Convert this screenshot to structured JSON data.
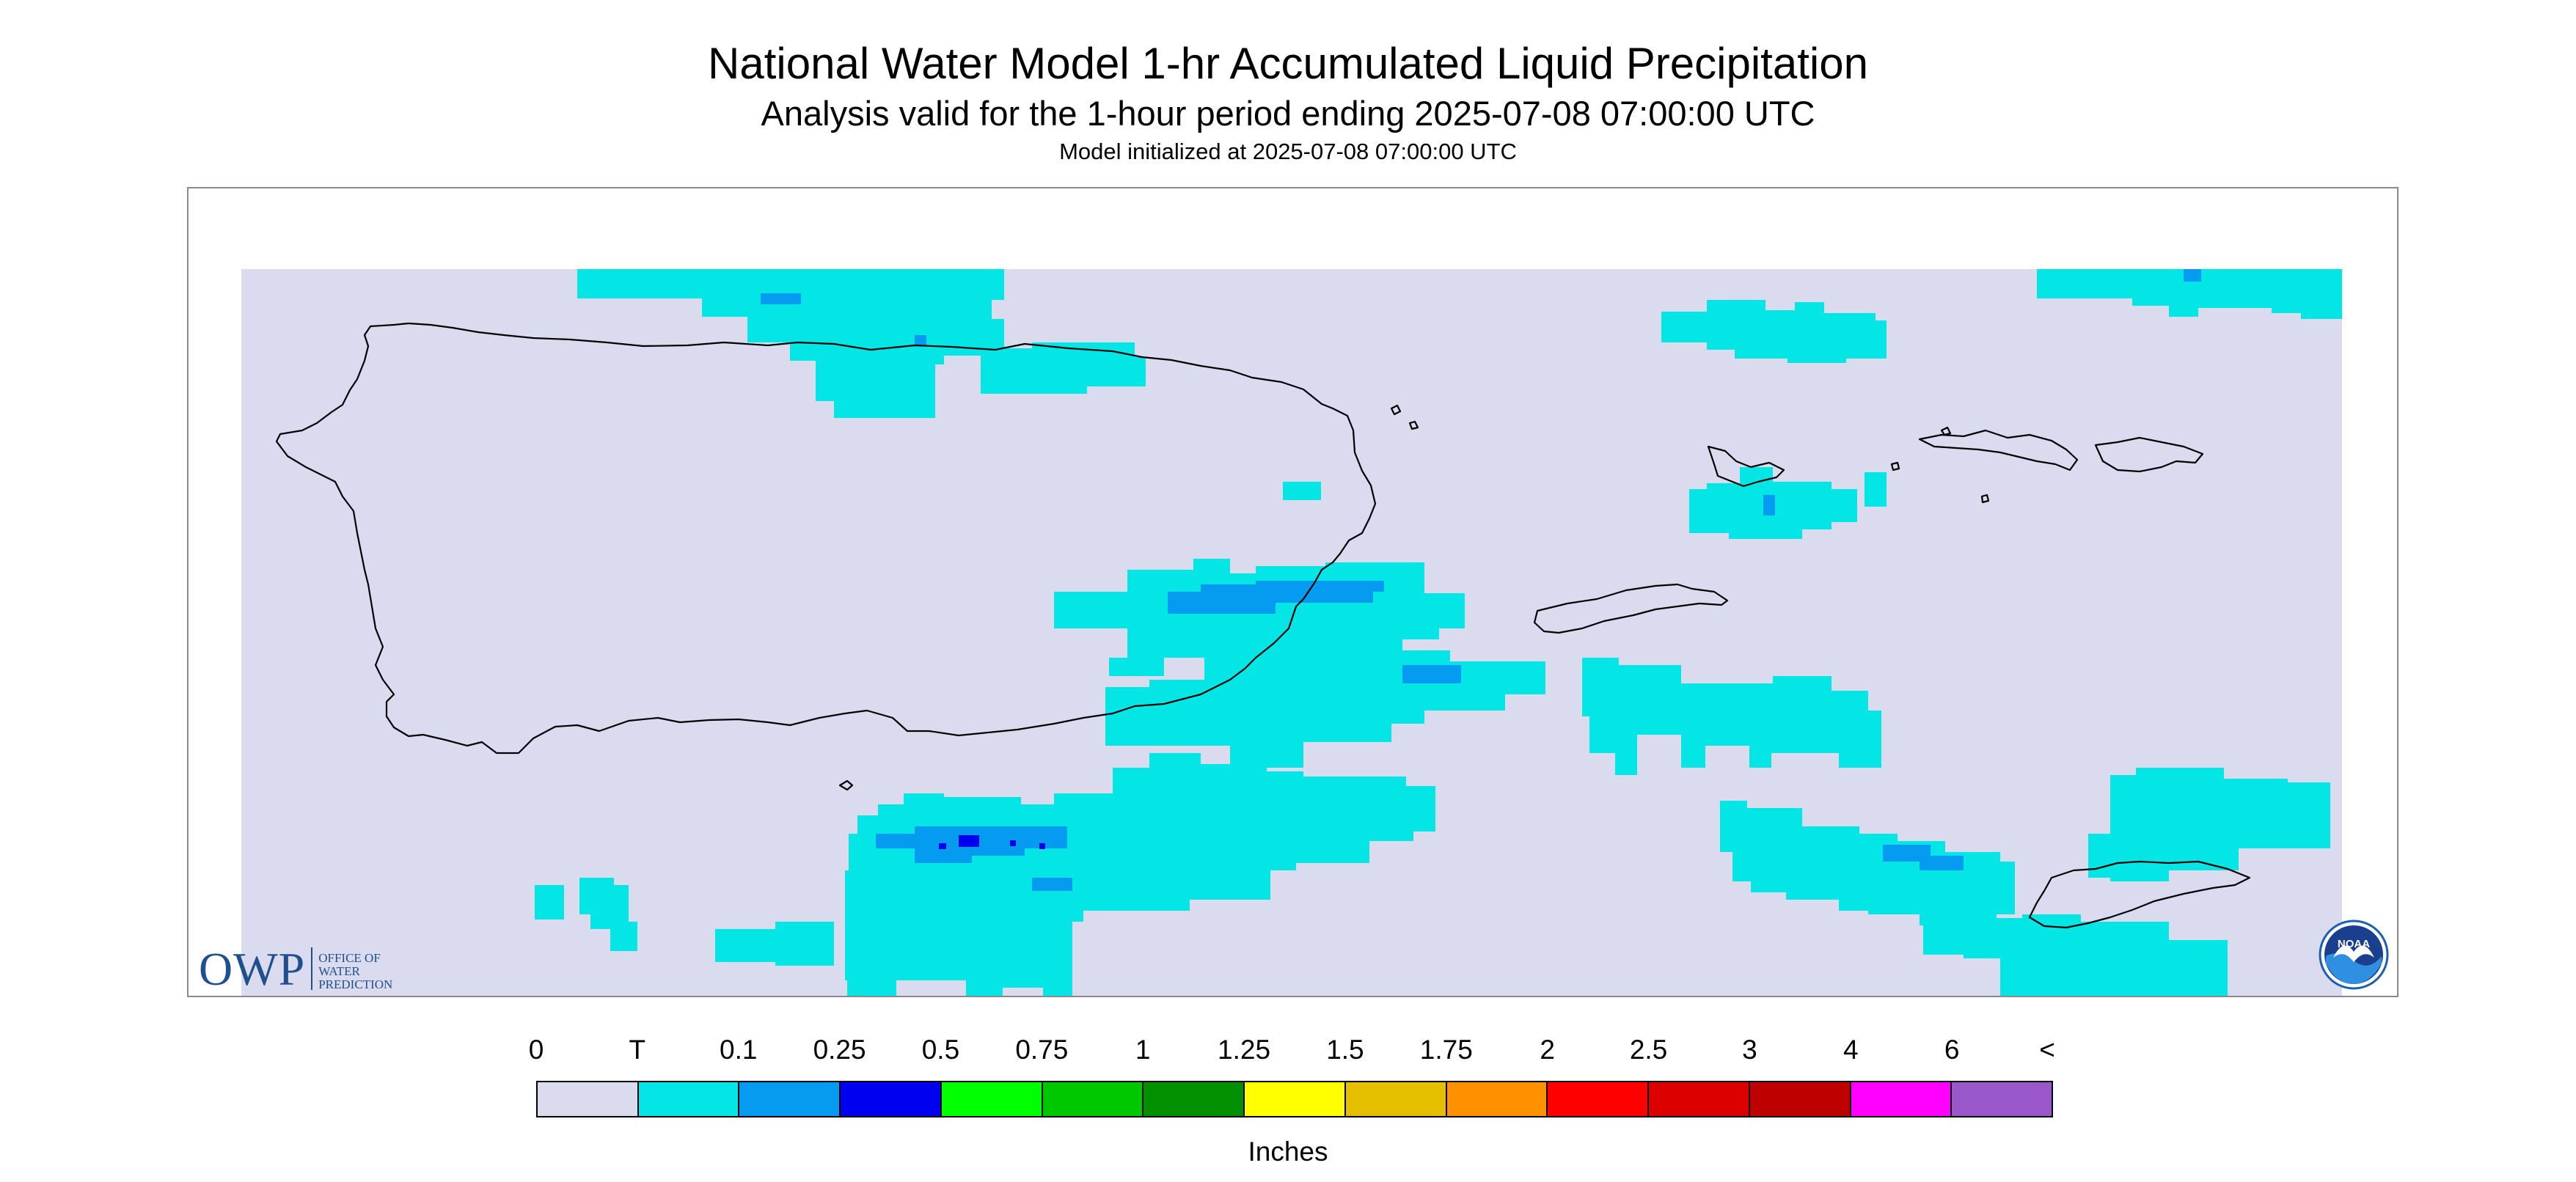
{
  "header": {
    "title": "National Water Model 1-hr Accumulated Liquid Precipitation",
    "subtitle": "Analysis valid for the 1-hour period ending 2025-07-08 07:00:00 UTC",
    "init_line": "Model initialized at 2025-07-08 07:00:00 UTC"
  },
  "map": {
    "background_color": "#dadbee",
    "coastline_color": "#000000",
    "precip_colors": {
      "trace": "#04e6e6",
      "p010": "#049bf0",
      "p025": "#0000f0"
    }
  },
  "logos": {
    "owp": {
      "letters": "OWP",
      "line1": "Office of",
      "line2": "Water",
      "line3": "Prediction",
      "color": "#1f4f8f"
    },
    "noaa": {
      "text": "NOAA",
      "icon": "noaa-emblem-icon"
    }
  },
  "legend": {
    "units": "Inches",
    "labels": [
      "0",
      "T",
      "0.1",
      "0.25",
      "0.5",
      "0.75",
      "1",
      "1.25",
      "1.5",
      "1.75",
      "2",
      "2.5",
      "3",
      "4",
      "6",
      "<"
    ],
    "colors": [
      "#dadbee",
      "#04e6e6",
      "#049bf0",
      "#0000f0",
      "#00ff00",
      "#00c800",
      "#009000",
      "#ffff00",
      "#e6be00",
      "#ff9000",
      "#ff0000",
      "#dc0000",
      "#be0000",
      "#ff00ff",
      "#9957c9"
    ]
  }
}
